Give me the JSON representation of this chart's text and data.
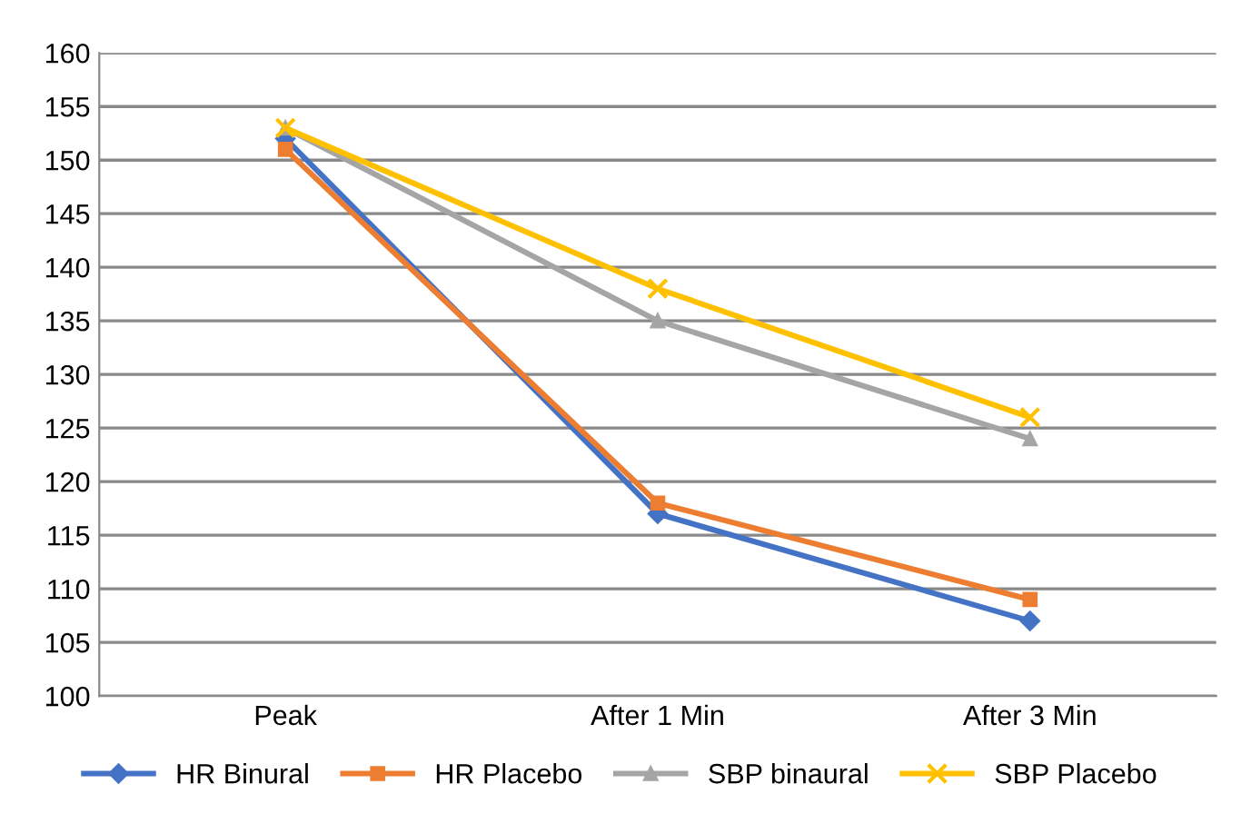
{
  "chart_data": {
    "type": "line",
    "categories": [
      "Peak",
      "After 1 Min",
      "After 3 Min"
    ],
    "series": [
      {
        "name": "HR Binural",
        "color": "#4472c4",
        "values": [
          152,
          117,
          107
        ],
        "marker": "diamond"
      },
      {
        "name": "HR Placebo",
        "color": "#ed7d31",
        "values": [
          151,
          118,
          109
        ],
        "marker": "square"
      },
      {
        "name": "SBP binaural",
        "color": "#a5a5a5",
        "values": [
          153,
          135,
          124
        ],
        "marker": "triangle"
      },
      {
        "name": "SBP Placebo",
        "color": "#ffc000",
        "values": [
          153,
          138,
          126
        ],
        "marker": "cross"
      }
    ],
    "ylim": [
      100,
      160
    ],
    "yticks": [
      100,
      105,
      110,
      115,
      120,
      125,
      130,
      135,
      140,
      145,
      150,
      155,
      160
    ],
    "grid": "y",
    "legend": "bottom"
  }
}
